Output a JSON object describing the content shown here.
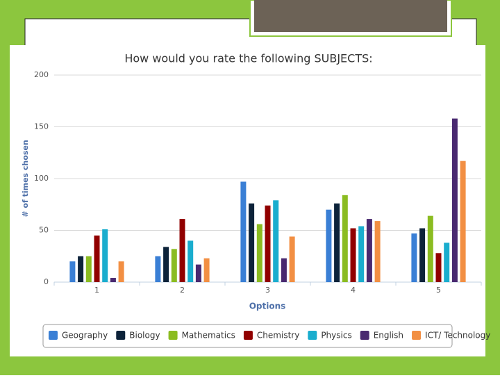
{
  "chart_data": {
    "type": "bar",
    "title": "How would you rate the following SUBJECTS:",
    "x_label": "Options",
    "y_label": "# of times chosen",
    "categories": [
      "1",
      "2",
      "3",
      "4",
      "5"
    ],
    "series": [
      {
        "name": "Geography",
        "color": "#3a7fd5",
        "values": [
          20,
          25,
          97,
          70,
          47
        ]
      },
      {
        "name": "Biology",
        "color": "#0d233a",
        "values": [
          25,
          34,
          76,
          76,
          52
        ]
      },
      {
        "name": "Mathematics",
        "color": "#8bbc21",
        "values": [
          25,
          32,
          56,
          84,
          64
        ]
      },
      {
        "name": "Chemistry",
        "color": "#910000",
        "values": [
          45,
          61,
          74,
          52,
          28
        ]
      },
      {
        "name": "Physics",
        "color": "#1aadce",
        "values": [
          51,
          40,
          79,
          54,
          38
        ]
      },
      {
        "name": "English",
        "color": "#492970",
        "values": [
          4,
          17,
          23,
          61,
          158
        ]
      },
      {
        "name": "ICT/ Technology",
        "color": "#f28f43",
        "values": [
          20,
          23,
          44,
          59,
          117
        ]
      }
    ],
    "ylim": [
      0,
      200
    ],
    "yticks": [
      0,
      50,
      100,
      150,
      200
    ],
    "grid": true,
    "legend": "bottom"
  }
}
